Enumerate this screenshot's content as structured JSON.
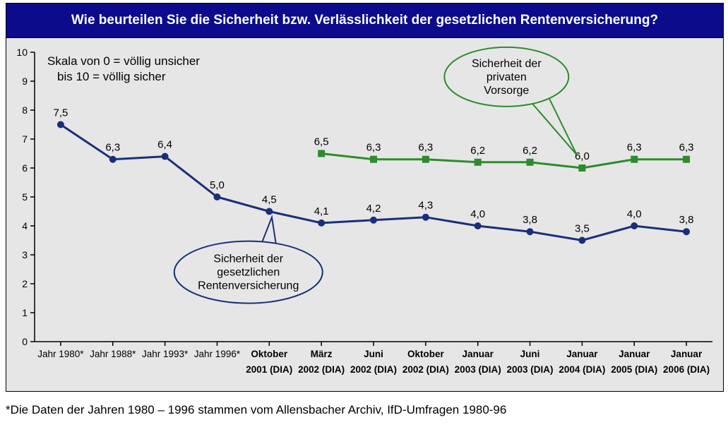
{
  "title": "Wie beurteilen Sie die Sicherheit bzw. Verlässlichkeit der gesetzlichen Rentenversicherung?",
  "scale_note_line1": "Skala von 0 = völlig unsicher",
  "scale_note_line2": "bis 10 = völlig sicher",
  "footnote": "*Die Daten der Jahren 1980 – 1996 stammen vom Allensbacher Archiv, IfD-Umfragen 1980-96",
  "chart": {
    "type": "line",
    "background_color": "#e6e6e6",
    "title_bg": "#0b0b8c",
    "title_color": "#ffffff",
    "axis_color": "#000000",
    "tick_length": 6,
    "ylim": [
      0,
      10
    ],
    "ytick_step": 1,
    "line_width": 3,
    "marker_size": 5,
    "label_fontsize": 15,
    "axis_fontsize": 14,
    "categories": [
      {
        "line1": "Jahr 1980*",
        "line2": ""
      },
      {
        "line1": "Jahr 1988*",
        "line2": ""
      },
      {
        "line1": "Jahr 1993*",
        "line2": ""
      },
      {
        "line1": "Jahr 1996*",
        "line2": ""
      },
      {
        "line1": "Oktober",
        "line2": "2001 (DIA)"
      },
      {
        "line1": "März",
        "line2": "2002 (DIA)"
      },
      {
        "line1": "Juni",
        "line2": "2002 (DIA)"
      },
      {
        "line1": "Oktober",
        "line2": "2002 (DIA)"
      },
      {
        "line1": "Januar",
        "line2": "2003 (DIA)"
      },
      {
        "line1": "Juni",
        "line2": "2003 (DIA)"
      },
      {
        "line1": "Januar",
        "line2": "2004 (DIA)"
      },
      {
        "line1": "Januar",
        "line2": "2005 (DIA)"
      },
      {
        "line1": "Januar",
        "line2": "2006 (DIA)"
      }
    ],
    "series": [
      {
        "name": "Sicherheit der gesetzlichen Rentenversicherung",
        "color": "#1a2f7a",
        "marker": "circle",
        "values": [
          7.5,
          6.3,
          6.4,
          5.0,
          4.5,
          4.1,
          4.2,
          4.3,
          4.0,
          3.8,
          3.5,
          4.0,
          3.8
        ],
        "labels": [
          "7,5",
          "6,3",
          "6,4",
          "5,0",
          "4,5",
          "4,1",
          "4,2",
          "4,3",
          "4,0",
          "3,8",
          "3,5",
          "4,0",
          "3,8"
        ]
      },
      {
        "name": "Sicherheit der privaten Vorsorge",
        "color": "#2e8b2e",
        "marker": "square",
        "values": [
          null,
          null,
          null,
          null,
          null,
          6.5,
          6.3,
          6.3,
          6.2,
          6.2,
          6.0,
          6.3,
          6.3
        ],
        "labels": [
          "",
          "",
          "",
          "",
          "",
          "6,5",
          "6,3",
          "6,3",
          "6,2",
          "6,2",
          "6,0",
          "6,3",
          "6,3"
        ]
      }
    ],
    "callouts": [
      {
        "series_index": 0,
        "text_lines": [
          "Sicherheit der",
          "gesetzlichen",
          "Rentenversicherung"
        ],
        "border_color": "#1a2f7a",
        "fill_color": "#e6e6e6",
        "border_width": 2,
        "ellipse_cx_cat": 3.6,
        "ellipse_cy_val": 2.4,
        "ellipse_rx": 105,
        "ellipse_ry": 44,
        "pointer_to_cat": 4.05,
        "pointer_to_val": 4.3
      },
      {
        "series_index": 1,
        "text_lines": [
          "Sicherheit der",
          "privaten",
          "Vorsorge"
        ],
        "border_color": "#2e8b2e",
        "fill_color": "#e6e6e6",
        "border_width": 2,
        "ellipse_cx_cat": 8.55,
        "ellipse_cy_val": 9.15,
        "ellipse_rx": 88,
        "ellipse_ry": 42,
        "pointer_to_cat": 9.9,
        "pointer_to_val": 6.45
      }
    ]
  }
}
